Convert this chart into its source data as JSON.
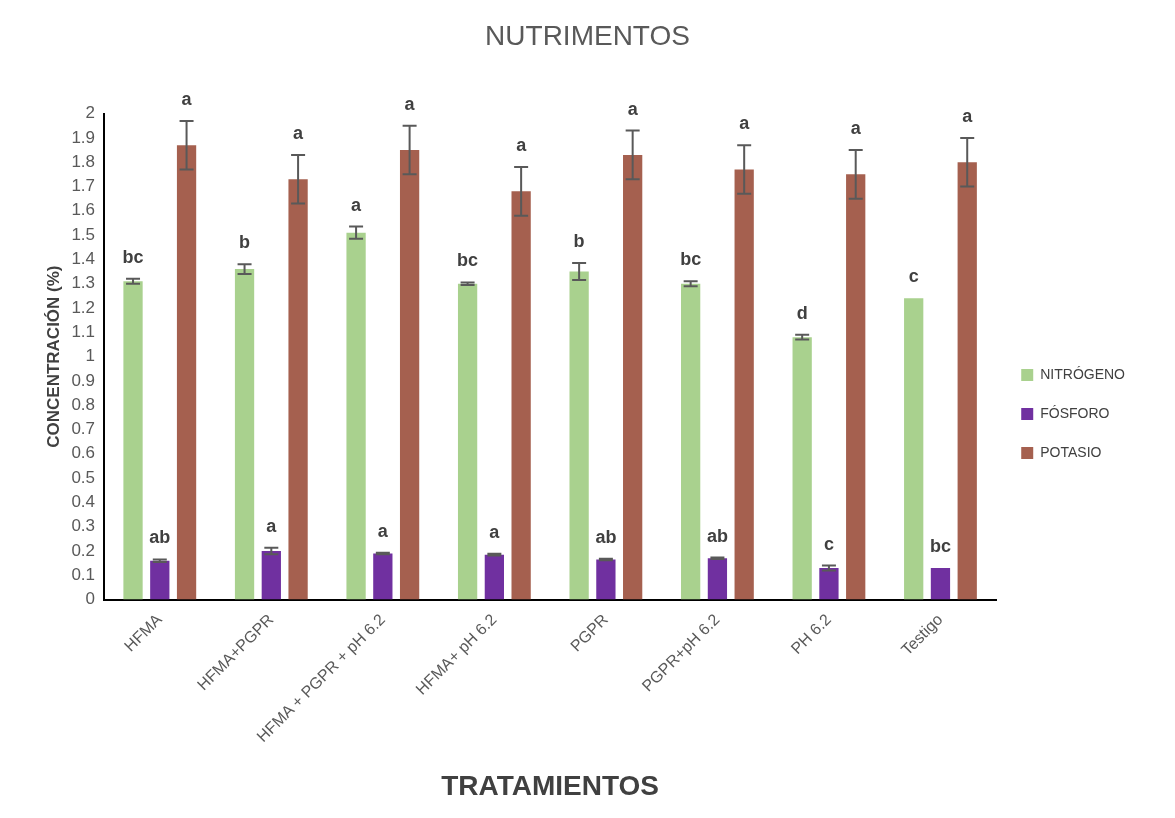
{
  "chart_data": {
    "type": "bar",
    "title": "NUTRIMENTOS",
    "xlabel": "TRATAMIENTOS",
    "ylabel": "CONCENTRACIÓN (%)",
    "categories": [
      "HFMA",
      "HFMA+PGPR",
      "HFMA + PGPR + pH 6.2",
      "HFMA+ pH 6.2",
      "PGPR",
      "PGPR+pH 6.2",
      "PH 6.2",
      "Testigo"
    ],
    "series": [
      {
        "name": "NITRÓGENO",
        "color": "#a9d18e",
        "values": [
          1.31,
          1.36,
          1.51,
          1.3,
          1.35,
          1.3,
          1.08,
          1.24
        ],
        "errors": [
          0.01,
          0.02,
          0.025,
          0.005,
          0.035,
          0.01,
          0.01,
          null
        ],
        "value_labels": [
          "bc",
          "b",
          "a",
          "bc",
          "b",
          "bc",
          "d",
          "c"
        ]
      },
      {
        "name": "FÓSFORO",
        "color": "#7030a0",
        "values": [
          0.16,
          0.2,
          0.19,
          0.185,
          0.165,
          0.17,
          0.13,
          0.13
        ],
        "errors": [
          0.005,
          0.013,
          0.003,
          0.004,
          0.003,
          0.003,
          0.01,
          null
        ],
        "value_labels": [
          "ab",
          "a",
          "a",
          "a",
          "ab",
          "ab",
          "c",
          "bc"
        ]
      },
      {
        "name": "POTASIO",
        "color": "#a5604f",
        "values": [
          1.87,
          1.73,
          1.85,
          1.68,
          1.83,
          1.77,
          1.75,
          1.8
        ],
        "errors": [
          0.1,
          0.1,
          0.1,
          0.1,
          0.1,
          0.1,
          0.1,
          0.1
        ],
        "value_labels": [
          "a",
          "a",
          "a",
          "a",
          "a",
          "a",
          "a",
          "a"
        ]
      }
    ],
    "ylim": [
      0,
      2
    ],
    "yticks": [
      0,
      0.1,
      0.2,
      0.3,
      0.4,
      0.5,
      0.6,
      0.7,
      0.8,
      0.9,
      1,
      1.1,
      1.2,
      1.3,
      1.4,
      1.5,
      1.6,
      1.7,
      1.8,
      1.9,
      2
    ],
    "grid": false,
    "legend": "right"
  }
}
